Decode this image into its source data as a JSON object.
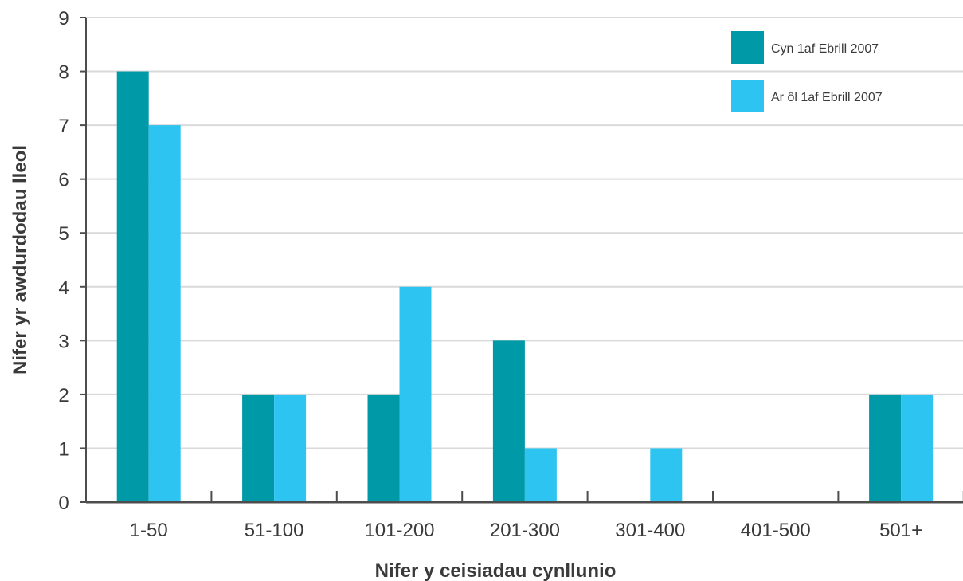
{
  "chart_data": {
    "type": "bar",
    "categories": [
      "1-50",
      "51-100",
      "101-200",
      "201-300",
      "301-400",
      "401-500",
      "501+"
    ],
    "series": [
      {
        "name": "Cyn 1af Ebrill 2007",
        "values": [
          8,
          2,
          2,
          3,
          0,
          0,
          2
        ],
        "color": "#0099A8"
      },
      {
        "name": "Ar ôl 1af Ebrill 2007",
        "values": [
          7,
          2,
          4,
          1,
          1,
          0,
          2
        ],
        "color": "#2EC4F1"
      }
    ],
    "title": "",
    "xlabel": "Nifer y ceisiadau cynllunio",
    "ylabel": "Nifer yr awdurdodau lleol",
    "ylim": [
      0,
      9
    ],
    "yticks": [
      0,
      1,
      2,
      3,
      4,
      5,
      6,
      7,
      8,
      9
    ],
    "grid": true,
    "legend_position": "top-right"
  }
}
